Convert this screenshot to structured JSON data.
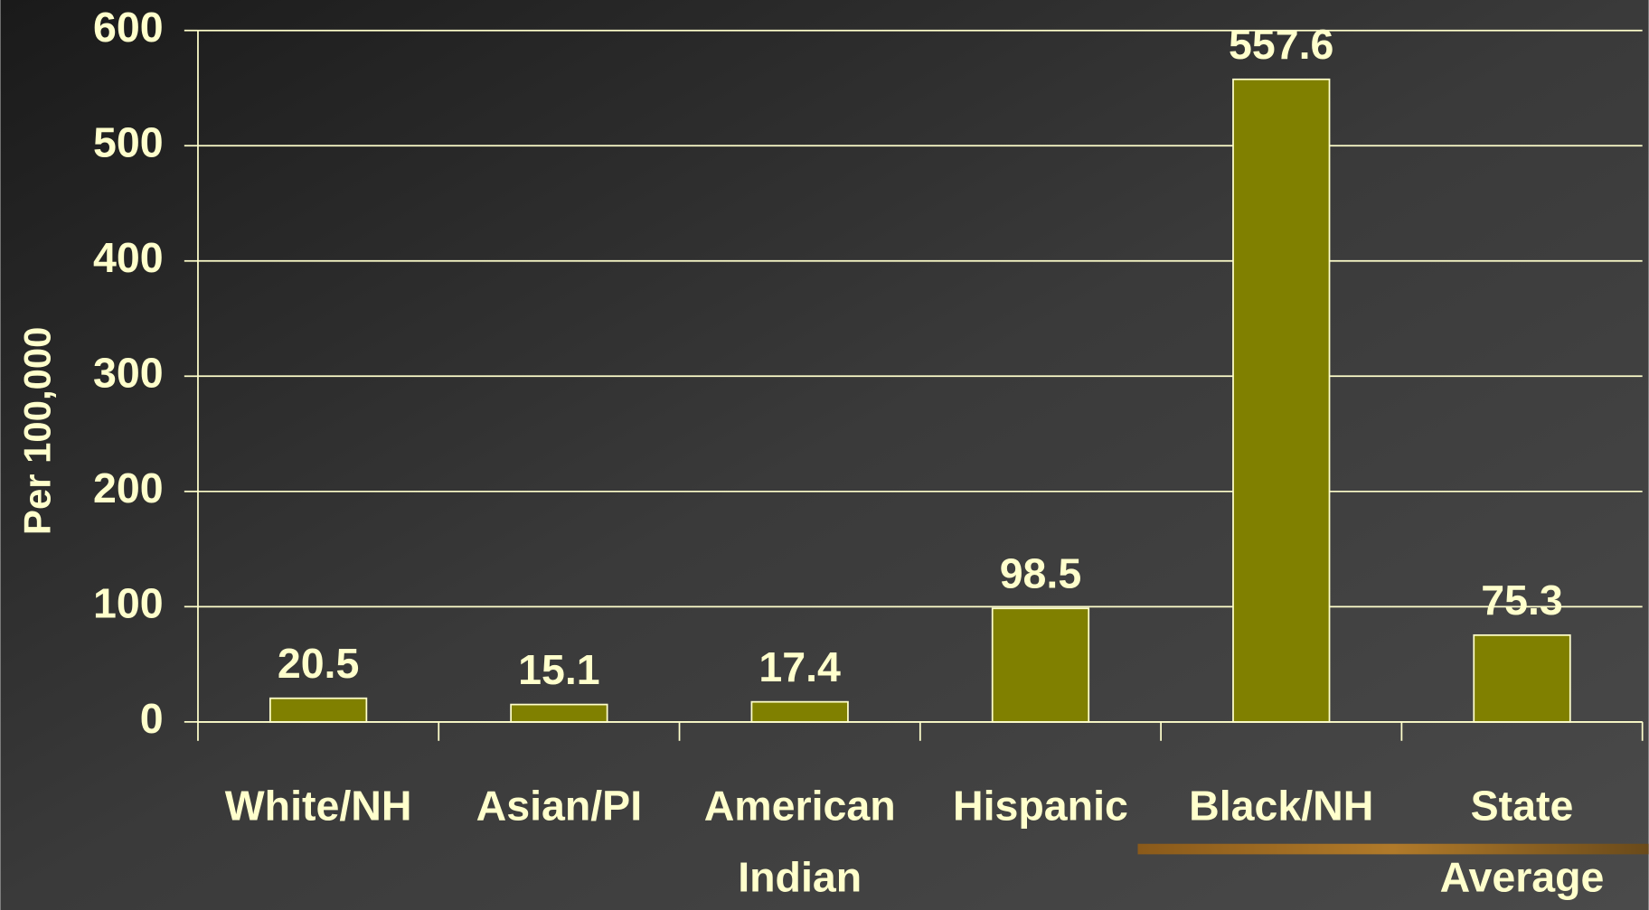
{
  "chart_data": {
    "type": "bar",
    "y_label": "Per 100,000",
    "categories": [
      "White/NH",
      "Asian/PI",
      "American Indian",
      "Hispanic",
      "Black/NH",
      "State Average"
    ],
    "values": [
      20.5,
      15.1,
      17.4,
      98.5,
      557.6,
      75.3
    ],
    "color": "#808000",
    "ylim": [
      0,
      600
    ],
    "yticks": [
      0,
      100,
      200,
      300,
      400,
      500,
      600
    ],
    "grid": true
  }
}
